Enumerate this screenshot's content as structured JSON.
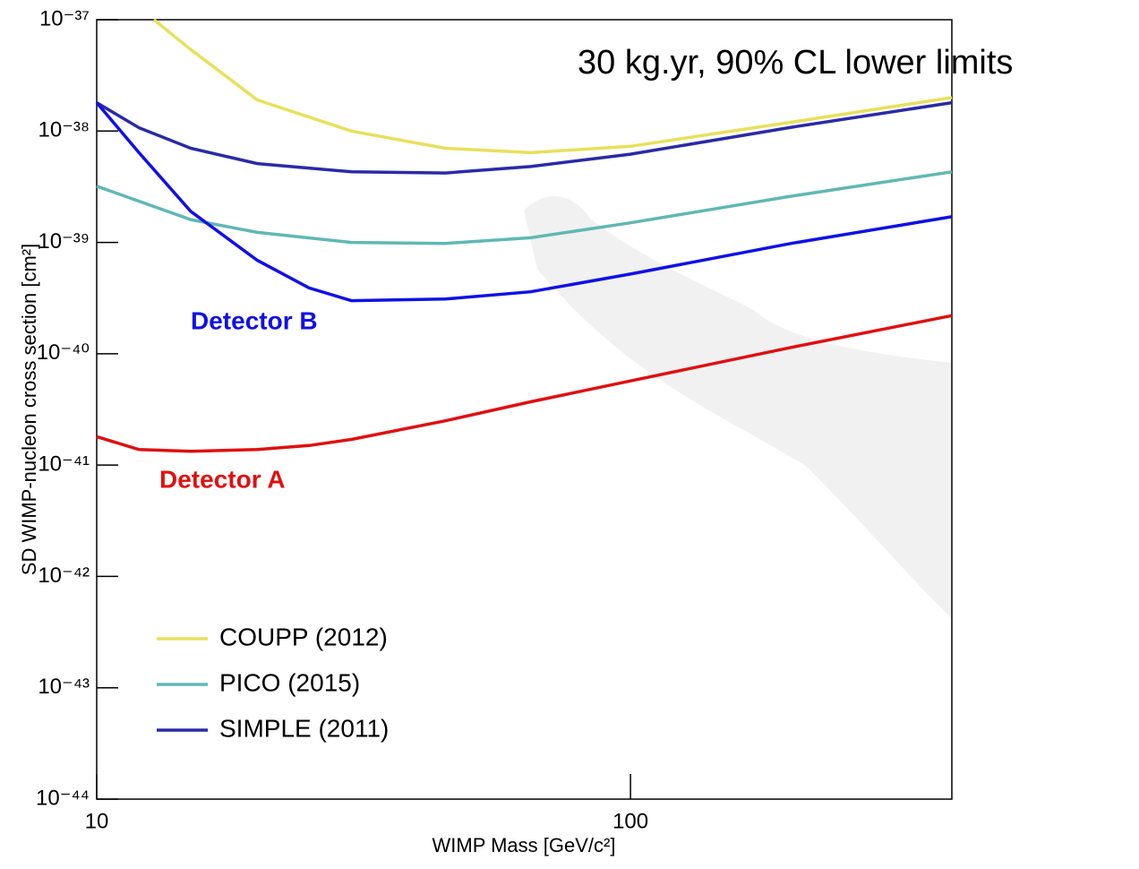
{
  "chart_data": {
    "type": "line",
    "annotation": "30 kg.yr, 90% CL lower limits",
    "xlabel": "WIMP Mass [GeV/c²]",
    "ylabel": "SD WIMP-nucleon cross section [cm²]",
    "xscale": "log",
    "yscale": "log",
    "xlim": [
      10,
      400
    ],
    "ylim": [
      1e-44,
      1e-37
    ],
    "xticks": [
      10,
      100
    ],
    "yticks": [
      {
        "value": 1e-44,
        "label": "10⁻⁴⁴"
      },
      {
        "value": 1e-43,
        "label": "10⁻⁴³"
      },
      {
        "value": 1e-42,
        "label": "10⁻⁴²"
      },
      {
        "value": 1e-41,
        "label": "10⁻⁴¹"
      },
      {
        "value": 1e-40,
        "label": "10⁻⁴⁰"
      },
      {
        "value": 1e-39,
        "label": "10⁻³⁹"
      },
      {
        "value": 1e-38,
        "label": "10⁻³⁸"
      },
      {
        "value": 1e-37,
        "label": "10⁻³⁷"
      }
    ],
    "legend": "lower left",
    "series": [
      {
        "name": "COUPP (2012)",
        "color": "#e8e05a",
        "in_legend": true,
        "x": [
          12.8,
          15,
          20,
          30,
          45,
          65,
          100,
          200,
          400
        ],
        "values": [
          1e-37,
          5.4e-38,
          1.9e-38,
          1e-38,
          7e-39,
          6.4e-39,
          7.3e-39,
          1.2e-38,
          2e-38
        ]
      },
      {
        "name": "PICO (2015)",
        "color": "#5fb8b4",
        "in_legend": true,
        "x": [
          10,
          15,
          20,
          30,
          45,
          65,
          100,
          200,
          400
        ],
        "values": [
          3.2e-39,
          1.6e-39,
          1.23e-39,
          1e-39,
          9.8e-40,
          1.1e-39,
          1.5e-39,
          2.6e-39,
          4.3e-39
        ]
      },
      {
        "name": "SIMPLE (2011)",
        "color": "#2a2aa8",
        "in_legend": true,
        "x": [
          10,
          12,
          15,
          20,
          30,
          45,
          65,
          100,
          200,
          400
        ],
        "values": [
          1.8e-38,
          1.07e-38,
          7e-39,
          5.1e-39,
          4.3e-39,
          4.2e-39,
          4.8e-39,
          6.2e-39,
          1.08e-38,
          1.8e-38
        ]
      },
      {
        "name": "Detector B",
        "color": "#1010e8",
        "in_legend": false,
        "x": [
          10,
          12,
          15,
          20,
          25,
          30,
          45,
          65,
          100,
          200,
          400
        ],
        "values": [
          1.8e-38,
          6.4e-39,
          1.9e-39,
          6.9e-40,
          3.9e-40,
          3e-40,
          3.1e-40,
          3.6e-40,
          5.2e-40,
          9.8e-40,
          1.7e-39
        ]
      },
      {
        "name": "Detector A",
        "color": "#e01010",
        "in_legend": false,
        "x": [
          10,
          12,
          15,
          20,
          25,
          30,
          45,
          65,
          100,
          200,
          400
        ],
        "values": [
          1.8e-41,
          1.38e-41,
          1.33e-41,
          1.38e-41,
          1.5e-41,
          1.7e-41,
          2.5e-41,
          3.7e-41,
          5.7e-41,
          1.14e-40,
          2.2e-40
        ]
      }
    ]
  }
}
